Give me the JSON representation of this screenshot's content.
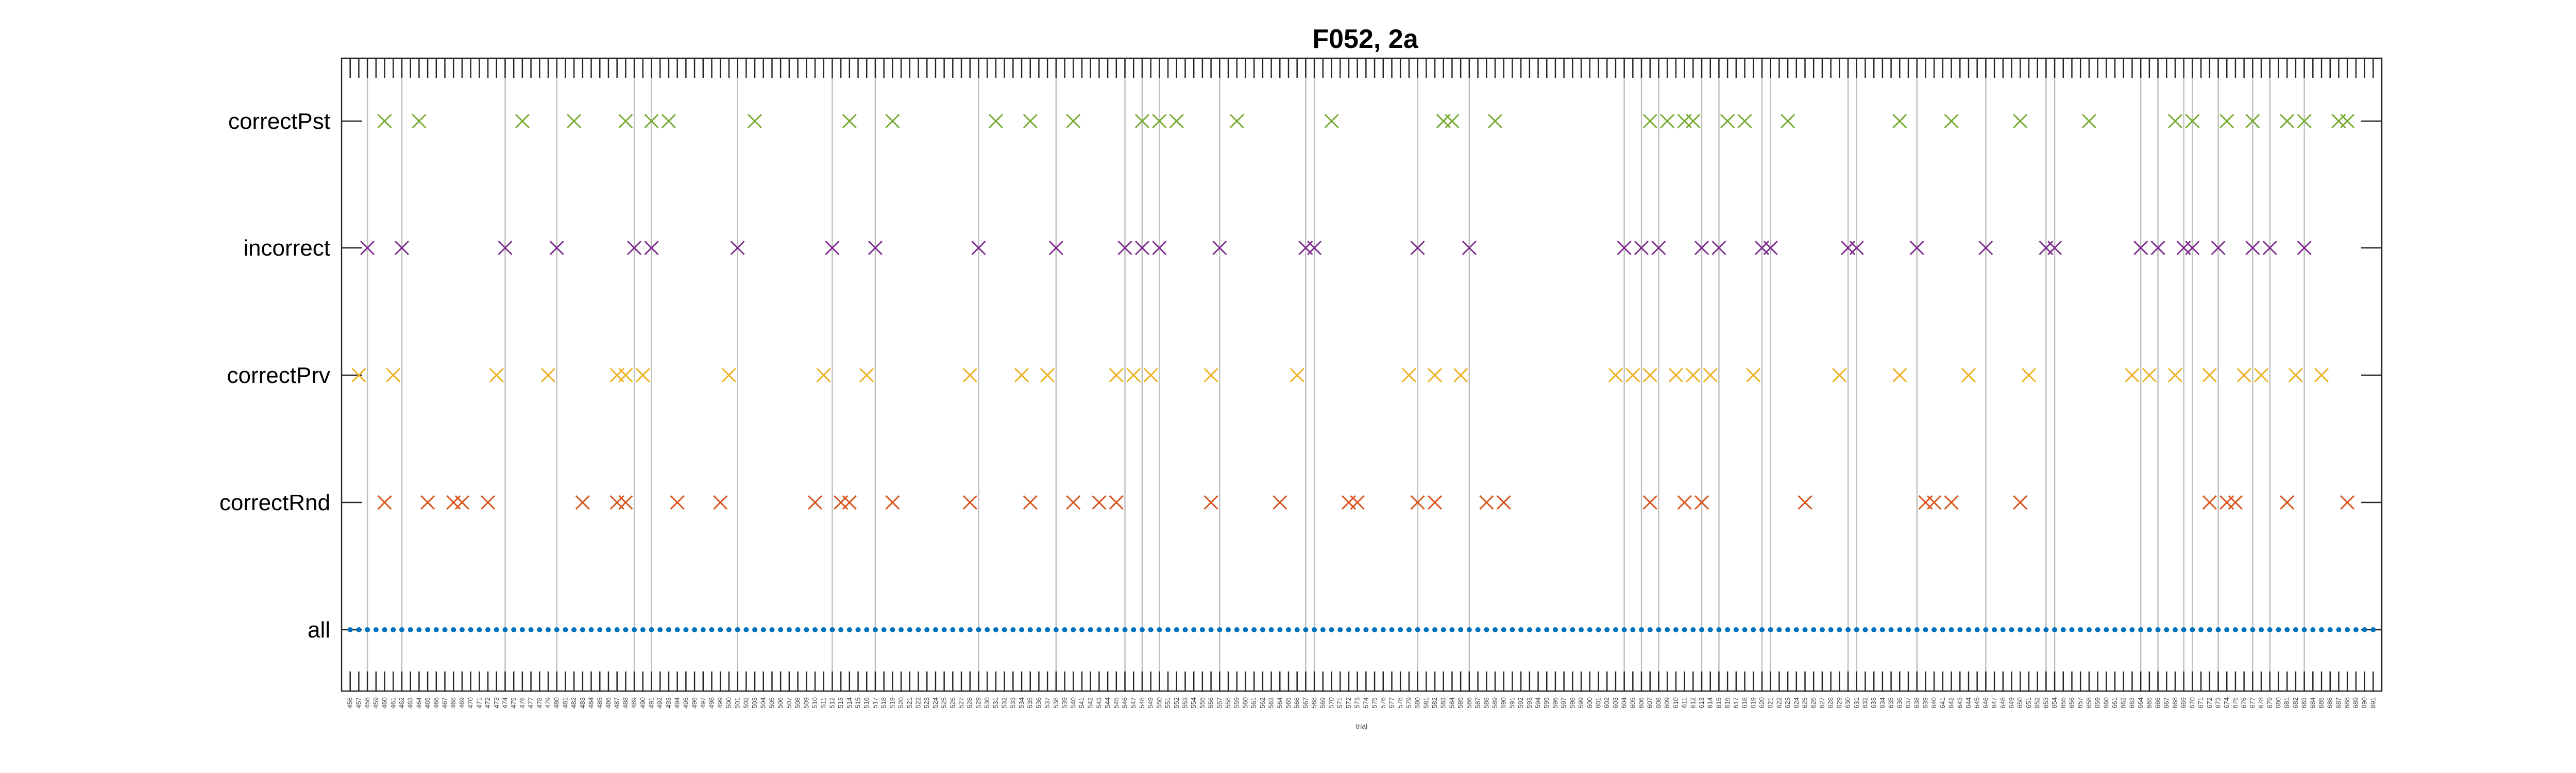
{
  "chart_data": {
    "type": "scatter",
    "title": "F052, 2a",
    "xlabel": "trial",
    "ylabel": "",
    "xlim": [
      455,
      692
    ],
    "categories": [
      "correctPst",
      "incorrect",
      "correctPrv",
      "correctRnd",
      "all"
    ],
    "x_tick_start": 456,
    "x_tick_end": 691,
    "vertical_lines": [
      458,
      462,
      474,
      480,
      489,
      491,
      501,
      512,
      517,
      529,
      538,
      546,
      548,
      550,
      557,
      567,
      568,
      580,
      586,
      604,
      606,
      608,
      613,
      615,
      620,
      621,
      630,
      631,
      638,
      646,
      653,
      654,
      664,
      666,
      669,
      670,
      673,
      677,
      679,
      683
    ],
    "series": [
      {
        "name": "correctPst",
        "marker": "x",
        "color": "#77AC30",
        "x": [
          460,
          464,
          476,
          482,
          488,
          491,
          493,
          503,
          514,
          519,
          531,
          535,
          540,
          548,
          550,
          552,
          559,
          570,
          583,
          584,
          589,
          607,
          609,
          611,
          612,
          616,
          618,
          623,
          636,
          642,
          650,
          658,
          668,
          670,
          674,
          677,
          681,
          683,
          687,
          688
        ]
      },
      {
        "name": "incorrect",
        "marker": "x",
        "color": "#7E2F8E",
        "x": [
          458,
          462,
          474,
          480,
          489,
          491,
          501,
          512,
          517,
          529,
          538,
          546,
          548,
          550,
          557,
          567,
          568,
          580,
          586,
          604,
          606,
          608,
          613,
          615,
          620,
          621,
          630,
          631,
          638,
          646,
          653,
          654,
          664,
          666,
          669,
          670,
          673,
          677,
          679,
          683
        ]
      },
      {
        "name": "correctPrv",
        "marker": "x",
        "color": "#EDB120",
        "x": [
          457,
          461,
          473,
          479,
          487,
          488,
          490,
          500,
          511,
          516,
          528,
          534,
          537,
          545,
          547,
          549,
          556,
          566,
          579,
          582,
          585,
          603,
          605,
          607,
          610,
          612,
          614,
          619,
          629,
          636,
          644,
          651,
          663,
          665,
          668,
          672,
          676,
          678,
          682,
          685
        ]
      },
      {
        "name": "correctRnd",
        "marker": "x",
        "color": "#D95319",
        "x": [
          460,
          465,
          468,
          469,
          472,
          483,
          487,
          488,
          494,
          499,
          510,
          513,
          514,
          519,
          528,
          535,
          540,
          543,
          545,
          556,
          564,
          572,
          573,
          580,
          582,
          588,
          590,
          607,
          611,
          613,
          625,
          639,
          640,
          642,
          650,
          672,
          674,
          675,
          681,
          688
        ]
      },
      {
        "name": "all",
        "marker": "dot",
        "color": "#0072BD",
        "x_start": 456,
        "x_end": 691
      }
    ]
  }
}
